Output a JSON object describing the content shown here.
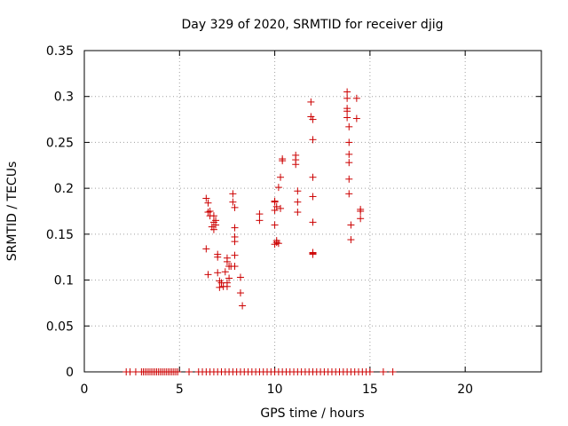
{
  "chart_data": {
    "type": "scatter",
    "title": "Day 329 of 2020, SRMTID for receiver djig",
    "xlabel": "GPS time / hours",
    "ylabel": "SRMTID / TECUs",
    "xlim": [
      0,
      24
    ],
    "ylim": [
      0,
      0.35
    ],
    "xticks": [
      0,
      5,
      10,
      15,
      20
    ],
    "yticks": [
      0,
      0.05,
      0.1,
      0.15,
      0.2,
      0.25,
      0.3,
      0.35
    ],
    "ytick_labels": [
      "0",
      "0.05",
      "0.1",
      "0.15",
      "0.2",
      "0.25",
      "0.3",
      "0.35"
    ],
    "grid": true,
    "marker": "+",
    "color": "#cc0000",
    "x": [
      2.2,
      2.4,
      2.7,
      3.0,
      3.1,
      3.2,
      3.3,
      3.4,
      3.5,
      3.6,
      3.7,
      3.8,
      3.9,
      4.0,
      4.1,
      4.2,
      4.3,
      4.4,
      4.5,
      4.6,
      4.7,
      4.8,
      4.9,
      5.5,
      6.0,
      6.2,
      6.4,
      6.6,
      6.8,
      7.0,
      7.2,
      7.4,
      7.6,
      7.8,
      8.0,
      8.2,
      8.4,
      8.6,
      8.8,
      9.0,
      9.2,
      9.4,
      9.6,
      9.8,
      10.0,
      10.2,
      10.4,
      10.6,
      10.8,
      11.0,
      11.2,
      11.4,
      11.6,
      11.8,
      12.0,
      12.2,
      12.4,
      12.6,
      12.8,
      13.0,
      13.2,
      13.4,
      13.6,
      13.8,
      14.0,
      14.2,
      14.4,
      14.6,
      14.8,
      15.0,
      15.7,
      16.2,
      6.4,
      6.5,
      6.5,
      6.6,
      6.6,
      6.7,
      6.8,
      6.8,
      6.8,
      6.9,
      6.9,
      6.4,
      6.5,
      7.0,
      7.0,
      7.0,
      7.1,
      7.1,
      7.2,
      7.3,
      7.4,
      7.5,
      7.5,
      7.5,
      7.5,
      7.6,
      7.6,
      7.7,
      7.8,
      7.8,
      7.9,
      7.9,
      7.9,
      7.9,
      7.9,
      7.9,
      8.2,
      8.2,
      8.3,
      9.2,
      9.2,
      10.0,
      10.0,
      10.0,
      10.1,
      10.1,
      10.1,
      10.2,
      10.2,
      10.3,
      10.3,
      10.4,
      10.4,
      10.0,
      10.0,
      11.1,
      11.1,
      11.1,
      11.2,
      11.2,
      11.2,
      11.9,
      11.9,
      12.0,
      12.0,
      12.0,
      12.0,
      12.0,
      12.0,
      12.0,
      12.0,
      13.8,
      13.8,
      13.8,
      13.8,
      13.8,
      13.9,
      13.9,
      13.9,
      13.9,
      13.9,
      13.9,
      14.0,
      14.0,
      14.3,
      14.3,
      14.5,
      14.5,
      14.5
    ],
    "y": [
      0,
      0,
      0,
      0,
      0,
      0,
      0,
      0,
      0,
      0,
      0,
      0,
      0,
      0,
      0,
      0,
      0,
      0,
      0,
      0,
      0,
      0,
      0,
      0,
      0,
      0,
      0,
      0,
      0,
      0,
      0,
      0,
      0,
      0,
      0,
      0,
      0,
      0,
      0,
      0,
      0,
      0,
      0,
      0,
      0,
      0,
      0,
      0,
      0,
      0,
      0,
      0,
      0,
      0,
      0,
      0,
      0,
      0,
      0,
      0,
      0,
      0,
      0,
      0,
      0,
      0,
      0,
      0,
      0,
      0,
      0,
      0,
      0.189,
      0.184,
      0.174,
      0.17,
      0.175,
      0.158,
      0.163,
      0.155,
      0.17,
      0.165,
      0.16,
      0.134,
      0.106,
      0.128,
      0.125,
      0.108,
      0.099,
      0.092,
      0.097,
      0.093,
      0.109,
      0.097,
      0.093,
      0.12,
      0.124,
      0.115,
      0.102,
      0.115,
      0.194,
      0.185,
      0.179,
      0.157,
      0.147,
      0.142,
      0.115,
      0.127,
      0.103,
      0.086,
      0.072,
      0.172,
      0.165,
      0.186,
      0.185,
      0.176,
      0.18,
      0.143,
      0.141,
      0.14,
      0.201,
      0.178,
      0.212,
      0.23,
      0.232,
      0.139,
      0.16,
      0.236,
      0.231,
      0.226,
      0.197,
      0.185,
      0.174,
      0.294,
      0.278,
      0.275,
      0.253,
      0.212,
      0.191,
      0.163,
      0.13,
      0.129,
      0.128,
      0.305,
      0.298,
      0.287,
      0.284,
      0.277,
      0.267,
      0.25,
      0.237,
      0.228,
      0.21,
      0.194,
      0.16,
      0.144,
      0.298,
      0.276,
      0.177,
      0.175,
      0.167
    ]
  }
}
